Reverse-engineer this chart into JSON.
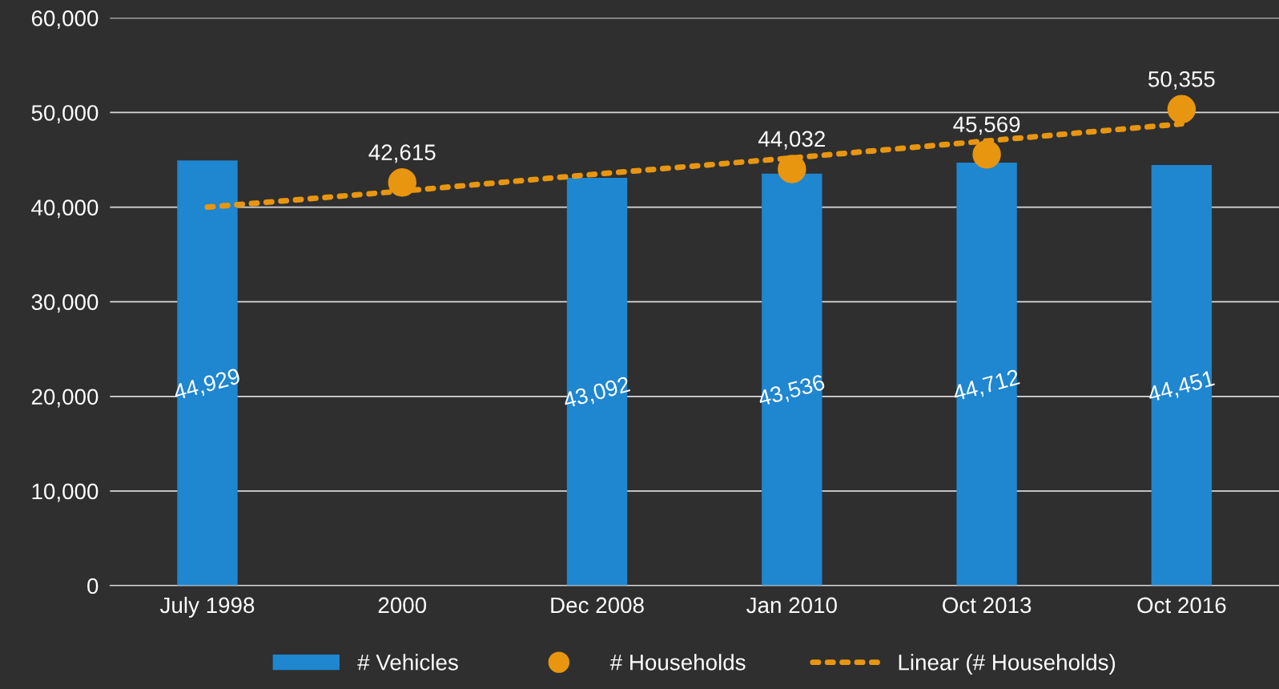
{
  "chart_data": {
    "type": "bar",
    "categories": [
      "July 1998",
      "2000",
      "Dec 2008",
      "Jan 2010",
      "Oct 2013",
      "Oct 2016"
    ],
    "series": [
      {
        "name": "# Vehicles",
        "color": "#1f86d0",
        "values": [
          44929,
          null,
          43092,
          43536,
          44712,
          44451
        ],
        "value_labels": [
          "44,929",
          null,
          "43,092",
          "43,536",
          "44,712",
          "44,451"
        ]
      },
      {
        "name": "# Households",
        "type": "scatter",
        "color": "#e8960f",
        "marker": "circle",
        "values": [
          null,
          42615,
          null,
          44032,
          45569,
          50355
        ],
        "value_labels": [
          null,
          "42,615",
          null,
          "44,032",
          "45,569",
          "50,355"
        ]
      },
      {
        "name": "Linear (# Households)",
        "type": "line",
        "color": "#e8960f",
        "marker": "none",
        "line_style": "dotted",
        "values": [
          40000,
          41700,
          43500,
          45200,
          47000,
          48800
        ]
      }
    ],
    "ylim": [
      0,
      60000
    ],
    "yticks": [
      {
        "value": 0,
        "label": "0"
      },
      {
        "value": 10000,
        "label": "10,000"
      },
      {
        "value": 20000,
        "label": "20,000"
      },
      {
        "value": 30000,
        "label": "30,000"
      },
      {
        "value": 40000,
        "label": "40,000"
      },
      {
        "value": 50000,
        "label": "50,000"
      },
      {
        "value": 60000,
        "label": "60,000"
      }
    ],
    "grid": "y",
    "legend": "bottom"
  }
}
